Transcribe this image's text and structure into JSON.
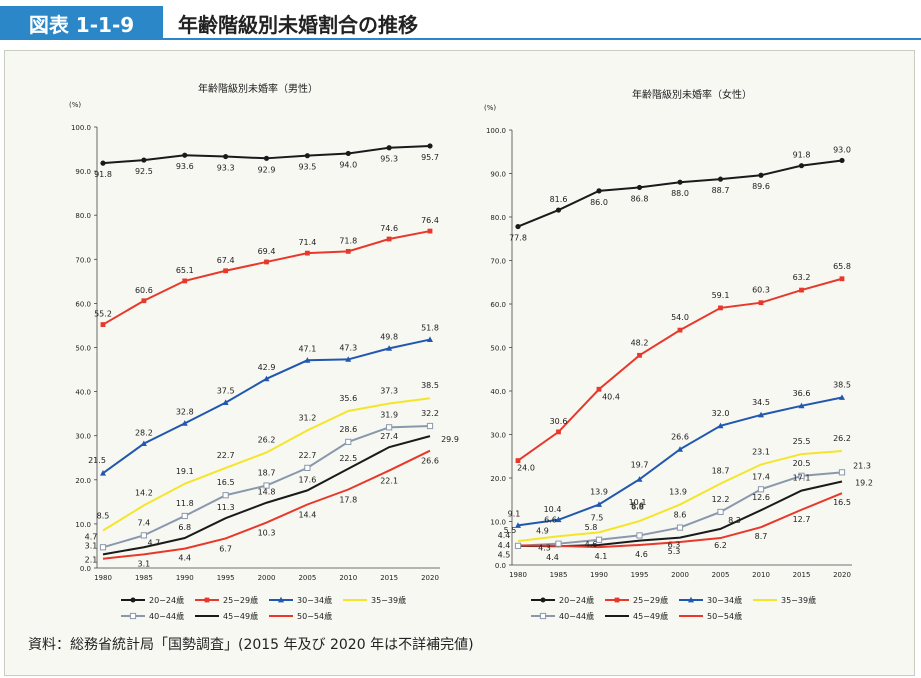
{
  "header": {
    "figure_label": "図表 1-1-9",
    "figure_title": "年齢階級別未婚割合の推移"
  },
  "source_note": "資料：総務省統計局「国勢調査」(2015 年及び 2020 年は不詳補完値)",
  "chart_data": [
    {
      "type": "line",
      "title": "年齢階級別未婚率（男性）",
      "ylabel": "(%)",
      "ylim": [
        0,
        100
      ],
      "yticks": [
        "0.0",
        "10.0",
        "20.0",
        "30.0",
        "40.0",
        "50.0",
        "60.0",
        "70.0",
        "80.0",
        "90.0",
        "100.0"
      ],
      "x": [
        "1980",
        "1985",
        "1990",
        "1995",
        "2000",
        "2005",
        "2010",
        "2015",
        "2020"
      ],
      "grid": false,
      "legend_position": "bottom",
      "series": [
        {
          "name": "20−24歳",
          "color": "#1a1a1a",
          "marker": "circle",
          "values": [
            91.8,
            92.5,
            93.6,
            93.3,
            92.9,
            93.5,
            94.0,
            95.3,
            95.7
          ],
          "labels": [
            "91.8",
            "92.5",
            "93.6",
            "93.3",
            "92.9",
            "93.5",
            "94.0",
            "95.3",
            "95.7"
          ]
        },
        {
          "name": "25−29歳",
          "color": "#e8382b",
          "marker": "square",
          "values": [
            55.2,
            60.6,
            65.1,
            67.4,
            69.4,
            71.4,
            71.8,
            74.6,
            76.4
          ],
          "labels": [
            "55.2",
            "60.6",
            "65.1",
            "67.4",
            "69.4",
            "71.4",
            "71.8",
            "74.6",
            "76.4"
          ]
        },
        {
          "name": "30−34歳",
          "color": "#2257b0",
          "marker": "triangle",
          "values": [
            21.5,
            28.2,
            32.8,
            37.5,
            42.9,
            47.1,
            47.3,
            49.8,
            51.8
          ],
          "labels": [
            "21.5",
            "28.2",
            "32.8",
            "37.5",
            "42.9",
            "47.1",
            "47.3",
            "49.8",
            "51.8"
          ]
        },
        {
          "name": "35−39歳",
          "color": "#f5e52a",
          "marker": "none",
          "values": [
            8.5,
            14.2,
            19.1,
            22.7,
            26.2,
            31.2,
            35.6,
            37.3,
            38.5
          ],
          "labels": [
            "8.5",
            "14.2",
            "19.1",
            "22.7",
            "26.2",
            "31.2",
            "35.6",
            "37.3",
            "38.5"
          ]
        },
        {
          "name": "40−44歳",
          "color": "#8a97ad",
          "marker": "open-square",
          "values": [
            4.7,
            7.4,
            11.8,
            16.5,
            18.7,
            22.7,
            28.6,
            31.9,
            32.2
          ],
          "labels": [
            "4.7",
            "7.4",
            "11.8",
            "16.5",
            "18.7",
            "22.7",
            "28.6",
            "31.9",
            "32.2"
          ]
        },
        {
          "name": "45−49歳",
          "color": "#1a1a1a",
          "marker": "none",
          "values": [
            3.1,
            4.7,
            6.8,
            11.3,
            14.8,
            17.6,
            22.5,
            27.4,
            29.9
          ],
          "labels": [
            "3.1",
            "4.7",
            "6.8",
            "11.3",
            "14.8",
            "17.6",
            "22.5",
            "27.4",
            "29.9"
          ]
        },
        {
          "name": "50−54歳",
          "color": "#e8382b",
          "marker": "none",
          "values": [
            2.1,
            3.1,
            4.4,
            6.7,
            10.3,
            14.4,
            17.8,
            22.1,
            26.6
          ],
          "labels": [
            "2.1",
            "3.1",
            "4.4",
            "6.7",
            "10.3",
            "14.4",
            "17.8",
            "22.1",
            "26.6"
          ]
        }
      ]
    },
    {
      "type": "line",
      "title": "年齢階級別未婚率（女性）",
      "ylabel": "(%)",
      "ylim": [
        0,
        100
      ],
      "yticks": [
        "0.0",
        "10.0",
        "20.0",
        "30.0",
        "40.0",
        "50.0",
        "60.0",
        "70.0",
        "80.0",
        "90.0",
        "100.0"
      ],
      "x": [
        "1980",
        "1985",
        "1990",
        "1995",
        "2000",
        "2005",
        "2010",
        "2015",
        "2020"
      ],
      "grid": false,
      "legend_position": "bottom",
      "series": [
        {
          "name": "20−24歳",
          "color": "#1a1a1a",
          "marker": "circle",
          "values": [
            77.8,
            81.6,
            86.0,
            86.8,
            88.0,
            88.7,
            89.6,
            91.8,
            93.0
          ],
          "labels": [
            "77.8",
            "81.6",
            "86.0",
            "86.8",
            "88.0",
            "88.7",
            "89.6",
            "91.8",
            "93.0"
          ]
        },
        {
          "name": "25−29歳",
          "color": "#e8382b",
          "marker": "square",
          "values": [
            24.0,
            30.6,
            40.4,
            48.2,
            54.0,
            59.1,
            60.3,
            63.2,
            65.8
          ],
          "labels": [
            "24.0",
            "30.6",
            "40.4",
            "48.2",
            "54.0",
            "59.1",
            "60.3",
            "63.2",
            "65.8"
          ]
        },
        {
          "name": "30−34歳",
          "color": "#2257b0",
          "marker": "triangle",
          "values": [
            9.1,
            10.4,
            13.9,
            19.7,
            26.6,
            32.0,
            34.5,
            36.6,
            38.5
          ],
          "labels": [
            "9.1",
            "10.4",
            "13.9",
            "19.7",
            "26.6",
            "32.0",
            "34.5",
            "36.6",
            "38.5"
          ]
        },
        {
          "name": "35−39歳",
          "color": "#f5e52a",
          "marker": "none",
          "values": [
            5.5,
            6.6,
            7.5,
            10.1,
            13.9,
            18.7,
            23.1,
            25.5,
            26.2
          ],
          "labels": [
            "5.5",
            "6.6",
            "7.5",
            "10.1",
            "13.9",
            "18.7",
            "23.1",
            "25.5",
            "26.2"
          ]
        },
        {
          "name": "40−44歳",
          "color": "#8a97ad",
          "marker": "open-square",
          "values": [
            4.4,
            4.9,
            5.8,
            6.8,
            8.6,
            12.2,
            17.4,
            20.5,
            21.3
          ],
          "labels": [
            "4.4",
            "4.9",
            "5.8",
            "6.8",
            "8.6",
            "12.2",
            "17.4",
            "20.5",
            "21.3"
          ]
        },
        {
          "name": "45−49歳",
          "color": "#1a1a1a",
          "marker": "none",
          "values": [
            4.4,
            4.3,
            4.6,
            5.6,
            6.3,
            8.3,
            12.6,
            17.1,
            19.2
          ],
          "labels": [
            "4.4",
            "4.3",
            "4.6",
            "5.6",
            "6.3",
            "8.3",
            "12.6",
            "17.1",
            "19.2"
          ]
        },
        {
          "name": "50−54歳",
          "color": "#e8382b",
          "marker": "none",
          "values": [
            4.5,
            4.4,
            4.1,
            4.6,
            5.3,
            6.2,
            8.7,
            12.7,
            16.5
          ],
          "labels": [
            "4.5",
            "4.4",
            "4.1",
            "4.6",
            "5.3",
            "6.2",
            "8.7",
            "12.7",
            "16.5"
          ]
        }
      ]
    }
  ]
}
